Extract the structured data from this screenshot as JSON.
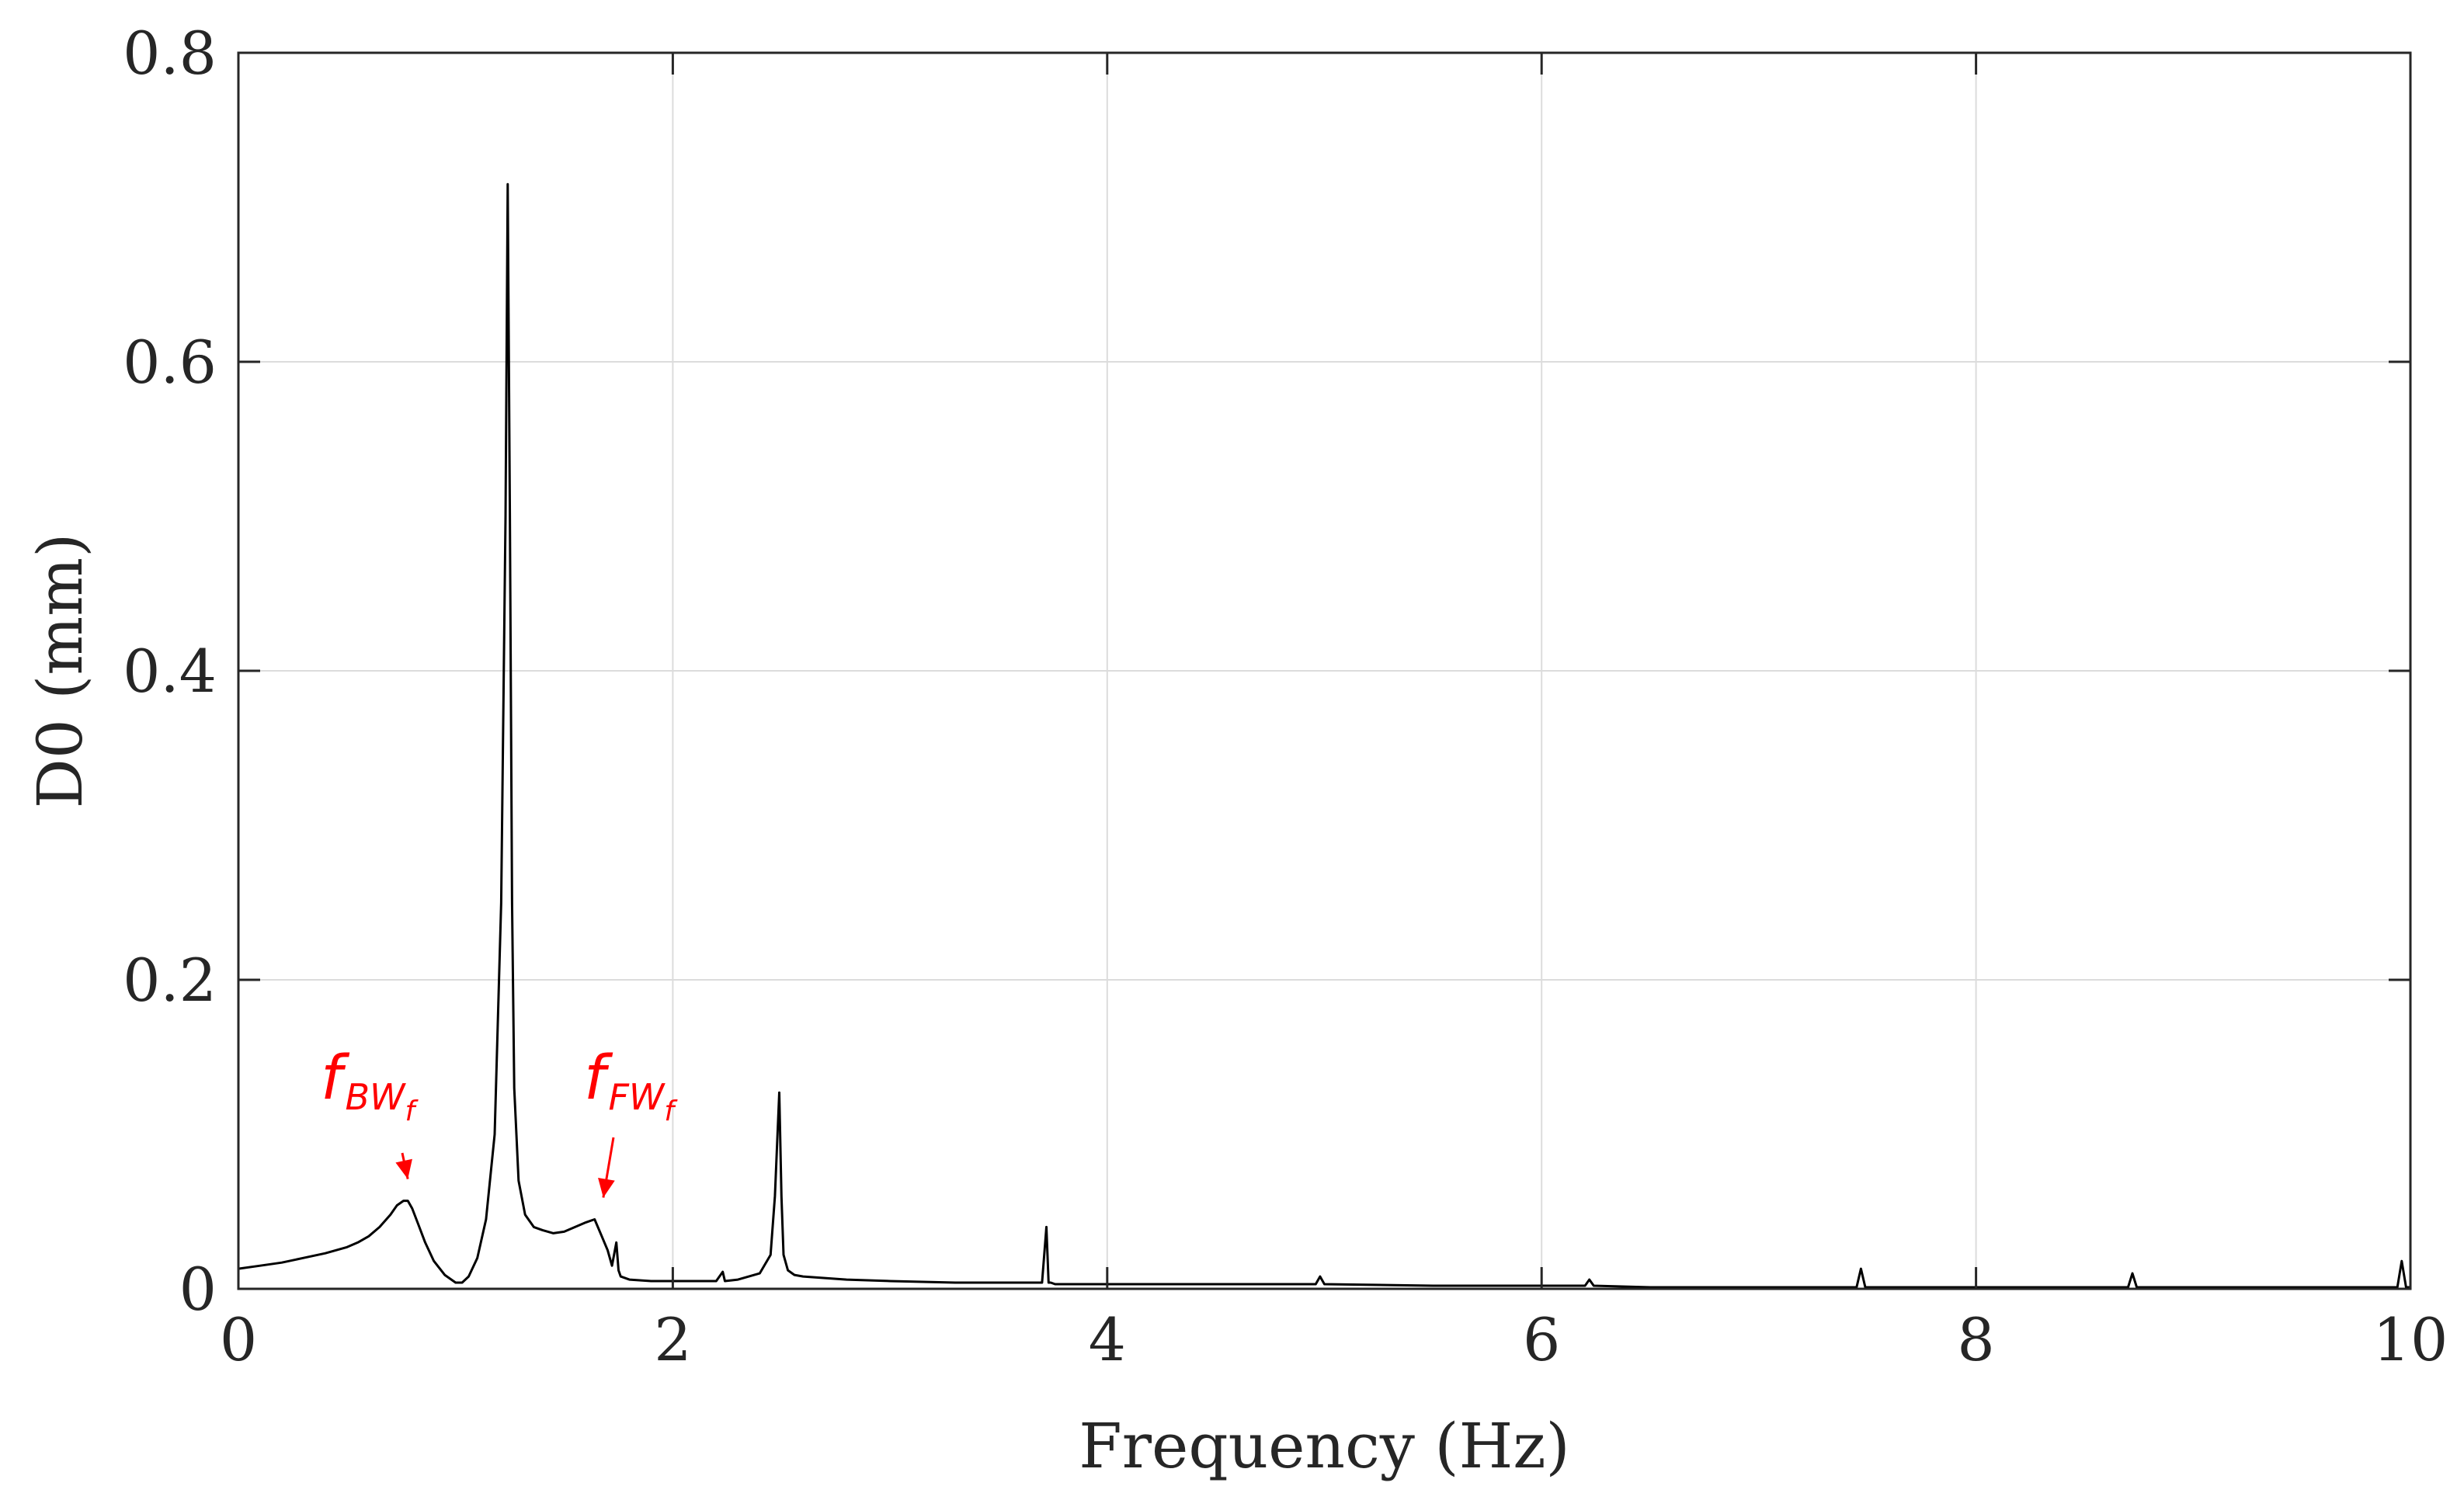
{
  "chart_data": {
    "type": "line",
    "title": "",
    "xlabel": "Frequency (Hz)",
    "ylabel": "D0 (mm)",
    "xlim": [
      0,
      10
    ],
    "ylim": [
      0,
      0.8
    ],
    "xticks": [
      0,
      2,
      4,
      6,
      8,
      10
    ],
    "yticks": [
      0,
      0.2,
      0.4,
      0.6,
      0.8
    ],
    "xtick_labels": [
      "0",
      "2",
      "4",
      "6",
      "8",
      "10"
    ],
    "ytick_labels": [
      "0",
      "0.2",
      "0.4",
      "0.6",
      "0.8"
    ],
    "grid": true,
    "legend": "none",
    "line_color": "#000000",
    "grid_color": "#dcdcdc",
    "annotation_color": "#ff0000",
    "series": [
      {
        "x": [
          0,
          0.1,
          0.2,
          0.3,
          0.4,
          0.5,
          0.55,
          0.6,
          0.65,
          0.7,
          0.73,
          0.76,
          0.78,
          0.8,
          0.83,
          0.86,
          0.9,
          0.95,
          1.0,
          1.03,
          1.06,
          1.1,
          1.14,
          1.18,
          1.21,
          1.23,
          1.24,
          1.25,
          1.26,
          1.27,
          1.29,
          1.32,
          1.36,
          1.4,
          1.45,
          1.5,
          1.55,
          1.6,
          1.64,
          1.67,
          1.7,
          1.72,
          1.74,
          1.75,
          1.76,
          1.8,
          1.9,
          2.0,
          2.2,
          2.23,
          2.24,
          2.3,
          2.4,
          2.45,
          2.47,
          2.49,
          2.5,
          2.51,
          2.53,
          2.56,
          2.6,
          2.8,
          3.0,
          3.3,
          3.7,
          3.72,
          3.73,
          3.74,
          3.76,
          4.0,
          4.5,
          4.96,
          4.98,
          5.0,
          5.5,
          6.0,
          6.2,
          6.22,
          6.24,
          6.5,
          7.0,
          7.45,
          7.47,
          7.49,
          8.0,
          8.5,
          8.7,
          8.72,
          8.74,
          9.0,
          9.5,
          9.94,
          9.96,
          9.98,
          10.0
        ],
        "y": [
          0.013,
          0.015,
          0.017,
          0.02,
          0.023,
          0.027,
          0.03,
          0.034,
          0.04,
          0.048,
          0.054,
          0.057,
          0.057,
          0.052,
          0.041,
          0.03,
          0.018,
          0.009,
          0.004,
          0.004,
          0.008,
          0.02,
          0.045,
          0.1,
          0.25,
          0.5,
          0.715,
          0.5,
          0.25,
          0.13,
          0.07,
          0.048,
          0.04,
          0.038,
          0.036,
          0.037,
          0.04,
          0.043,
          0.045,
          0.035,
          0.025,
          0.015,
          0.03,
          0.012,
          0.008,
          0.006,
          0.005,
          0.005,
          0.005,
          0.011,
          0.005,
          0.006,
          0.01,
          0.022,
          0.06,
          0.127,
          0.06,
          0.022,
          0.012,
          0.009,
          0.008,
          0.006,
          0.005,
          0.004,
          0.004,
          0.04,
          0.004,
          0.004,
          0.003,
          0.003,
          0.003,
          0.003,
          0.008,
          0.003,
          0.002,
          0.002,
          0.002,
          0.006,
          0.002,
          0.001,
          0.001,
          0.001,
          0.013,
          0.001,
          0.001,
          0.001,
          0.001,
          0.01,
          0.001,
          0.001,
          0.001,
          0.001,
          0.018,
          0.001,
          0.001
        ]
      }
    ],
    "annotations": [
      {
        "label_main": "f",
        "label_sub": "BW",
        "label_subsub": "f",
        "x": 0.78,
        "y": 0.057
      },
      {
        "label_main": "f",
        "label_sub": "FW",
        "label_subsub": "f",
        "x": 1.68,
        "y": 0.045
      }
    ]
  }
}
